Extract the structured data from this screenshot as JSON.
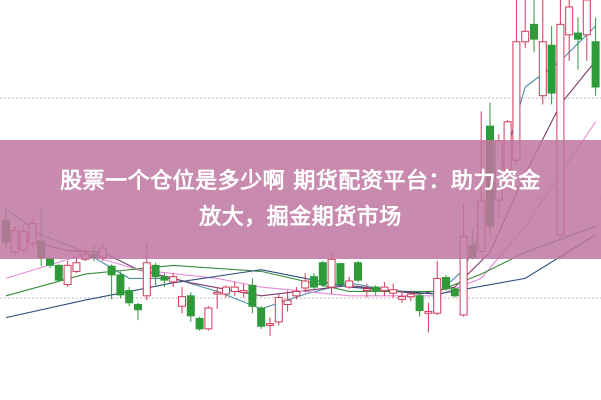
{
  "headline": {
    "line1": "股票一个仓位是多少啊 期货配资平台：助力资金",
    "line2": "放大，掘金期货市场"
  },
  "colors": {
    "up": "#d2385a",
    "down": "#2e9a3a",
    "banner": "#c47ba6",
    "grid": "#bbbbbb"
  },
  "chart_data": {
    "type": "candlestick",
    "title": "",
    "xlabel": "",
    "ylabel": "",
    "grid": true,
    "gridlines": 3,
    "ohlc": [
      [
        147,
        122,
        160,
        115
      ],
      [
        110,
        135,
        140,
        105
      ],
      [
        113,
        134,
        138,
        110
      ],
      [
        120,
        143,
        148,
        116
      ],
      [
        123,
        104,
        160,
        94
      ],
      [
        103,
        95,
        106,
        92
      ],
      [
        95,
        78,
        96,
        76
      ],
      [
        73,
        95,
        100,
        70
      ],
      [
        88,
        98,
        104,
        86
      ],
      [
        102,
        108,
        114,
        100
      ],
      [
        108,
        104,
        118,
        100
      ],
      [
        104,
        115,
        120,
        100
      ],
      [
        94,
        84,
        96,
        56
      ],
      [
        84,
        61,
        88,
        57
      ],
      [
        66,
        52,
        70,
        48
      ],
      [
        50,
        44,
        52,
        32
      ],
      [
        60,
        98,
        120,
        55
      ],
      [
        95,
        82,
        98,
        72
      ],
      [
        82,
        78,
        86,
        70
      ],
      [
        76,
        82,
        86,
        70
      ],
      [
        48,
        59,
        70,
        40
      ],
      [
        60,
        37,
        64,
        30
      ],
      [
        34,
        22,
        36,
        20
      ],
      [
        22,
        46,
        48,
        20
      ],
      [
        62,
        64,
        70,
        45
      ],
      [
        62,
        70,
        72,
        58
      ],
      [
        65,
        70,
        76,
        60
      ],
      [
        64,
        66,
        74,
        58
      ],
      [
        72,
        48,
        80,
        40
      ],
      [
        46,
        25,
        48,
        22
      ],
      [
        26,
        28,
        35,
        14
      ],
      [
        30,
        58,
        62,
        26
      ],
      [
        50,
        55,
        66,
        42
      ],
      [
        60,
        65,
        70,
        56
      ],
      [
        69,
        77,
        86,
        64
      ],
      [
        82,
        70,
        86,
        68
      ],
      [
        98,
        73,
        100,
        70
      ],
      [
        70,
        102,
        110,
        62
      ],
      [
        97,
        73,
        98,
        72
      ],
      [
        70,
        77,
        82,
        68
      ],
      [
        98,
        78,
        100,
        76
      ],
      [
        66,
        68,
        74,
        58
      ],
      [
        70,
        65,
        72,
        60
      ],
      [
        66,
        70,
        76,
        60
      ],
      [
        63,
        67,
        74,
        58
      ],
      [
        56,
        59,
        66,
        52
      ],
      [
        59,
        62,
        66,
        54
      ],
      [
        60,
        43,
        64,
        36
      ],
      [
        40,
        42,
        52,
        18
      ],
      [
        40,
        80,
        100,
        38
      ],
      [
        81,
        68,
        84,
        66
      ],
      [
        68,
        60,
        70,
        58
      ],
      [
        38,
        128,
        166,
        36
      ],
      [
        118,
        104,
        136,
        102
      ],
      [
        111,
        169,
        272,
        110
      ],
      [
        255,
        140,
        282,
        130
      ],
      [
        170,
        238,
        246,
        150
      ],
      [
        205,
        260,
        262,
        190
      ],
      [
        216,
        352,
        400,
        210
      ],
      [
        352,
        364,
        400,
        345
      ],
      [
        372,
        355,
        400,
        340
      ],
      [
        290,
        352,
        400,
        280
      ],
      [
        348,
        293,
        370,
        280
      ],
      [
        130,
        372,
        400,
        128
      ],
      [
        360,
        392,
        400,
        330
      ],
      [
        362,
        355,
        380,
        320
      ],
      [
        360,
        400,
        400,
        330
      ],
      [
        352,
        300,
        380,
        290
      ]
    ],
    "moving_averages": [
      {
        "color": "#4a8fa8",
        "points": [
          [
            0,
            160
          ],
          [
            4,
            130
          ],
          [
            9,
            110
          ],
          [
            14,
            80
          ],
          [
            19,
            80
          ],
          [
            24,
            65
          ],
          [
            29,
            45
          ],
          [
            34,
            62
          ],
          [
            39,
            75
          ],
          [
            44,
            65
          ],
          [
            49,
            62
          ],
          [
            52,
            90
          ],
          [
            55,
            160
          ],
          [
            59,
            300
          ],
          [
            63,
            330
          ],
          [
            67,
            370
          ]
        ]
      },
      {
        "color": "#7a3d6a",
        "points": [
          [
            0,
            130
          ],
          [
            7,
            112
          ],
          [
            11,
            110
          ],
          [
            15,
            90
          ],
          [
            21,
            75
          ],
          [
            29,
            60
          ],
          [
            39,
            72
          ],
          [
            47,
            62
          ],
          [
            51,
            70
          ],
          [
            55,
            110
          ],
          [
            59,
            200
          ],
          [
            63,
            280
          ],
          [
            67,
            330
          ]
        ]
      },
      {
        "color": "#e58ad8",
        "points": [
          [
            0,
            80
          ],
          [
            9,
            108
          ],
          [
            15,
            90
          ],
          [
            24,
            80
          ],
          [
            29,
            70
          ],
          [
            39,
            60
          ],
          [
            49,
            60
          ],
          [
            54,
            80
          ],
          [
            59,
            140
          ],
          [
            67,
            260
          ]
        ]
      },
      {
        "color": "#3a8a3a",
        "points": [
          [
            0,
            60
          ],
          [
            9,
            85
          ],
          [
            19,
            95
          ],
          [
            29,
            88
          ],
          [
            39,
            65
          ],
          [
            49,
            65
          ],
          [
            54,
            85
          ],
          [
            59,
            110
          ],
          [
            67,
            140
          ]
        ]
      },
      {
        "color": "#2d4f7a",
        "points": [
          [
            0,
            35
          ],
          [
            9,
            55
          ],
          [
            19,
            75
          ],
          [
            29,
            90
          ],
          [
            39,
            70
          ],
          [
            49,
            62
          ],
          [
            59,
            80
          ],
          [
            67,
            130
          ]
        ]
      }
    ]
  }
}
